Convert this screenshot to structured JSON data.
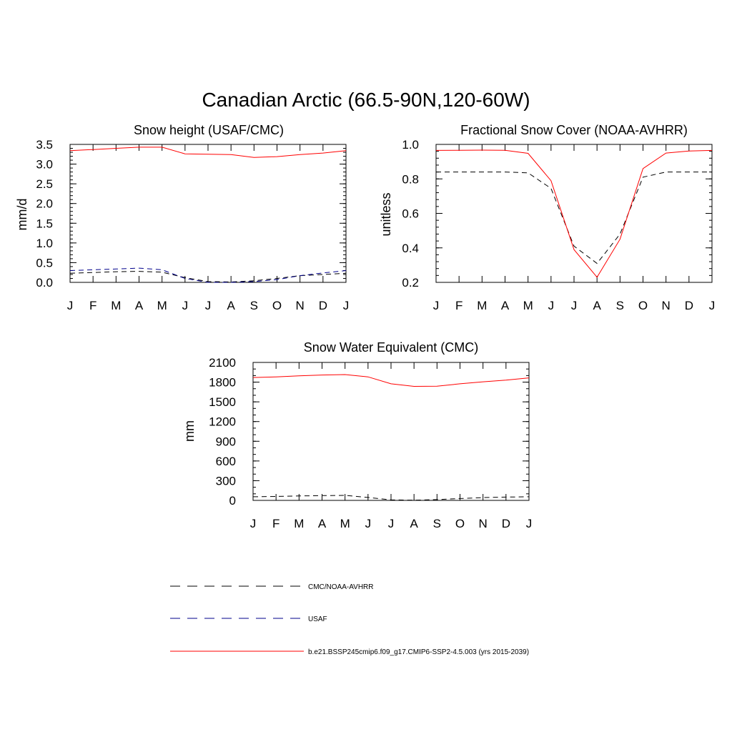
{
  "title": "Canadian Arctic (66.5-90N,120-60W)",
  "colors": {
    "obs": "#000000",
    "usaf": "#00008b",
    "model": "#ff0000",
    "frame": "#000000"
  },
  "legend": [
    {
      "label": "CMC/NOAA-AVHRR",
      "color": "#000000",
      "dash": "dashed"
    },
    {
      "label": "USAF",
      "color": "#00008b",
      "dash": "dashed"
    },
    {
      "label": "b.e21.BSSP245cmip6.f09_g17.CMIP6-SSP2-4.5.003 (yrs 2015-2039)",
      "color": "#ff0000",
      "dash": "solid"
    }
  ],
  "chart_data": [
    {
      "type": "line",
      "title": "Snow height (USAF/CMC)",
      "ylabel": "mm/d",
      "xlabel": "",
      "categories": [
        "J",
        "F",
        "M",
        "A",
        "M",
        "J",
        "J",
        "A",
        "S",
        "O",
        "N",
        "D",
        "J"
      ],
      "ylim": [
        0,
        3.5
      ],
      "yticks": [
        0,
        0.5,
        1.0,
        1.5,
        2.0,
        2.5,
        3.0,
        3.5
      ],
      "ytick_labels": [
        "0.0",
        "0.5",
        "1.0",
        "1.5",
        "2.0",
        "2.5",
        "3.0",
        "3.5"
      ],
      "minor_step": 0.1,
      "series": [
        {
          "name": "CMC/NOAA-AVHRR",
          "color": "#000000",
          "dash": "dashed",
          "values": [
            0.23,
            0.25,
            0.27,
            0.28,
            0.26,
            0.12,
            0.02,
            0.01,
            0.04,
            0.1,
            0.17,
            0.2,
            0.23
          ]
        },
        {
          "name": "USAF",
          "color": "#00008b",
          "dash": "dashed",
          "values": [
            0.3,
            0.32,
            0.34,
            0.36,
            0.32,
            0.1,
            0.0,
            0.0,
            0.02,
            0.07,
            0.17,
            0.24,
            0.3
          ]
        },
        {
          "name": "b.e21.BSSP245cmip6.f09_g17.CMIP6-SSP2-4.5.003 (yrs 2015-2039)",
          "color": "#ff0000",
          "dash": "solid",
          "values": [
            3.34,
            3.37,
            3.4,
            3.43,
            3.43,
            3.26,
            3.25,
            3.24,
            3.17,
            3.19,
            3.24,
            3.28,
            3.34
          ]
        }
      ]
    },
    {
      "type": "line",
      "title": "Fractional Snow Cover (NOAA-AVHRR)",
      "ylabel": "unitless",
      "xlabel": "",
      "categories": [
        "J",
        "F",
        "M",
        "A",
        "M",
        "J",
        "J",
        "A",
        "S",
        "O",
        "N",
        "D",
        "J"
      ],
      "ylim": [
        0.2,
        1.0
      ],
      "yticks": [
        0.2,
        0.4,
        0.6,
        0.8,
        1.0
      ],
      "ytick_labels": [
        "0.2",
        "0.4",
        "0.6",
        "0.8",
        "1.0"
      ],
      "minor_step": 0.04,
      "series": [
        {
          "name": "CMC/NOAA-AVHRR",
          "color": "#000000",
          "dash": "dashed",
          "values": [
            0.84,
            0.84,
            0.84,
            0.84,
            0.835,
            0.745,
            0.41,
            0.31,
            0.48,
            0.81,
            0.84,
            0.84,
            0.84
          ]
        },
        {
          "name": "b.e21.BSSP245cmip6.f09_g17.CMIP6-SSP2-4.5.003 (yrs 2015-2039)",
          "color": "#ff0000",
          "dash": "solid",
          "values": [
            0.965,
            0.966,
            0.967,
            0.966,
            0.948,
            0.79,
            0.39,
            0.23,
            0.45,
            0.86,
            0.95,
            0.962,
            0.965
          ]
        }
      ]
    },
    {
      "type": "line",
      "title": "Snow Water Equivalent (CMC)",
      "ylabel": "mm",
      "xlabel": "",
      "categories": [
        "J",
        "F",
        "M",
        "A",
        "M",
        "J",
        "J",
        "A",
        "S",
        "O",
        "N",
        "D",
        "J"
      ],
      "ylim": [
        0,
        2100
      ],
      "yticks": [
        0,
        300,
        600,
        900,
        1200,
        1500,
        1800,
        2100
      ],
      "ytick_labels": [
        "0",
        "300",
        "600",
        "900",
        "1200",
        "1500",
        "1800",
        "2100"
      ],
      "minor_step": 100,
      "series": [
        {
          "name": "CMC/NOAA-AVHRR",
          "color": "#000000",
          "dash": "dashed",
          "values": [
            55,
            60,
            68,
            73,
            76,
            45,
            8,
            3,
            12,
            28,
            42,
            50,
            55
          ]
        },
        {
          "name": "b.e21.BSSP245cmip6.f09_g17.CMIP6-SSP2-4.5.003 (yrs 2015-2039)",
          "color": "#ff0000",
          "dash": "solid",
          "values": [
            1870,
            1880,
            1895,
            1908,
            1915,
            1880,
            1775,
            1735,
            1738,
            1775,
            1805,
            1830,
            1865
          ]
        }
      ]
    }
  ]
}
